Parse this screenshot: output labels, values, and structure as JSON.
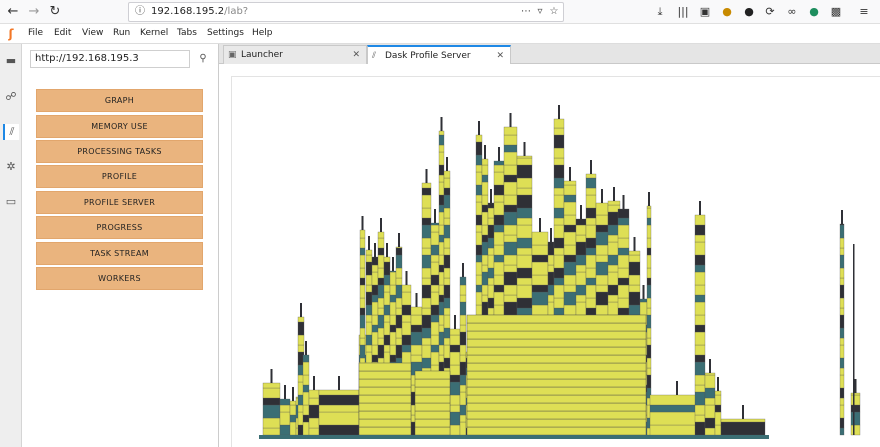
{
  "browser": {
    "back_icon": "back-arrow-icon",
    "forward_icon": "forward-arrow-icon",
    "reload_icon": "reload-icon",
    "url_host": "192.168.195.2",
    "url_path": "/lab?",
    "more_icon": "more-icon",
    "toolbar_icons": [
      "download-icon",
      "library-icon",
      "sidebar-icon",
      "extension-icon",
      "extension-icon",
      "sync-icon",
      "link-icon",
      "extension-icon",
      "puzzle-icon",
      "menu-icon"
    ]
  },
  "menubar": {
    "items": [
      "File",
      "Edit",
      "View",
      "Run",
      "Kernel",
      "Tabs",
      "Settings",
      "Help"
    ]
  },
  "activity_bar": {
    "icons": [
      "folder-icon",
      "running-icon",
      "dask-icon",
      "palette-icon",
      "tabs-icon"
    ]
  },
  "dask_panel": {
    "url_value": "http://192.168.195.3",
    "buttons": [
      "GRAPH",
      "MEMORY USE",
      "PROCESSING TASKS",
      "PROFILE",
      "PROFILE SERVER",
      "PROGRESS",
      "TASK STREAM",
      "WORKERS"
    ],
    "button_color": "#eab47e"
  },
  "tabs": [
    {
      "label": "Launcher",
      "close": "✕",
      "active": false
    },
    {
      "label": "Dask Profile Server",
      "close": "✕",
      "active": true
    }
  ],
  "colors": {
    "flame_yellow": "#dedf55",
    "flame_teal": "#3b6e74",
    "flame_dark": "#2f3036",
    "accent_orange": "#f37726"
  }
}
